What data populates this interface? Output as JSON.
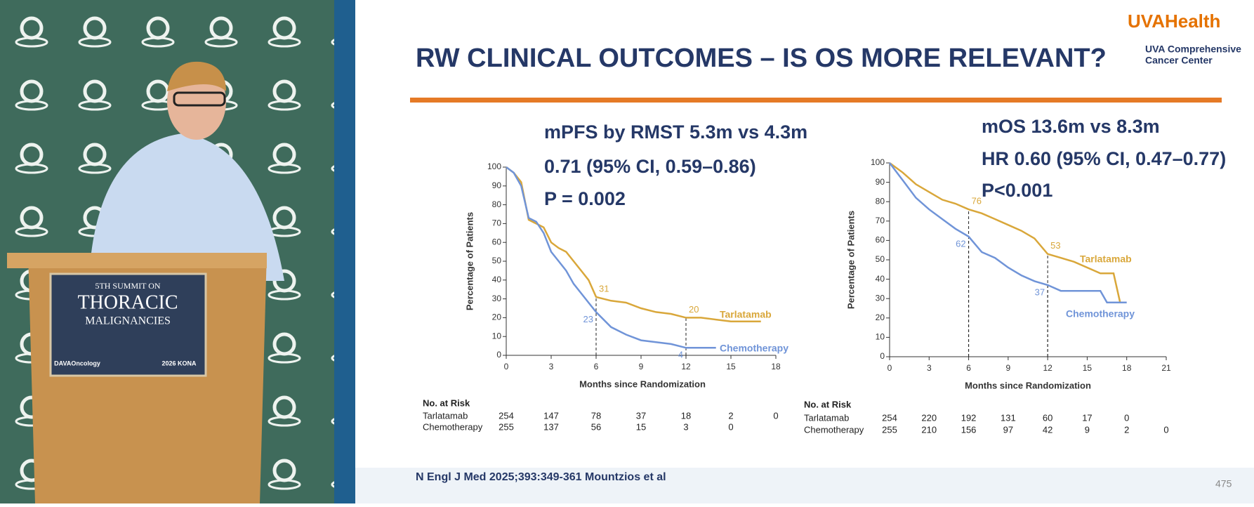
{
  "slide": {
    "title": "RW CLINICAL OUTCOMES – IS OS MORE RELEVANT?",
    "logo": "UVAHealth",
    "logo_sub": [
      "UVA Comprehensive",
      "Cancer Center"
    ],
    "citation": "N Engl J Med 2025;393:349-361 Mountzios et al",
    "page": "475"
  },
  "podium": {
    "lines": [
      "5TH SUMMIT ON",
      "THORACIC",
      "MALIGNANCIES"
    ],
    "left_logo": "DAVAOncology",
    "right_logo": "2026 KONA"
  },
  "chart_data": [
    {
      "type": "line",
      "stats": [
        "mPFS by RMST 5.3m vs 4.3m",
        "0.71 (95% CI, 0.59–0.86)",
        "P = 0.002"
      ],
      "x_label": "Months since Randomization",
      "y_label": "Percentage of Patients",
      "x": [
        0,
        0.5,
        1,
        1.5,
        2,
        2.5,
        3,
        3.5,
        4,
        4.5,
        5,
        5.5,
        6,
        7,
        8,
        9,
        10,
        11,
        12,
        13,
        14,
        15,
        16,
        17
      ],
      "series": [
        {
          "name": "Tarlatamab",
          "color": "#d9a73a",
          "values": [
            100,
            97,
            92,
            72,
            70,
            68,
            60,
            57,
            55,
            50,
            45,
            40,
            31,
            29,
            28,
            25,
            23,
            22,
            20,
            20,
            19,
            18,
            18,
            18
          ],
          "annotations": [
            {
              "x": 6,
              "y": 31
            },
            {
              "x": 12,
              "y": 20
            }
          ]
        },
        {
          "name": "Chemotherapy",
          "color": "#7094d8",
          "values": [
            100,
            97,
            90,
            73,
            71,
            65,
            55,
            50,
            45,
            38,
            33,
            28,
            23,
            15,
            11,
            8,
            7,
            6,
            4,
            4,
            4,
            null,
            null,
            null
          ],
          "annotations": [
            {
              "x": 6,
              "y": 23
            },
            {
              "x": 12,
              "y": 4
            }
          ]
        }
      ],
      "xlim": [
        0,
        18
      ],
      "xticks": [
        0,
        3,
        6,
        9,
        12,
        15,
        18
      ],
      "ylim": [
        0,
        100
      ],
      "yticks": [
        0,
        10,
        20,
        30,
        40,
        50,
        60,
        70,
        80,
        90,
        100
      ],
      "risk_table": {
        "title": "No. at Risk",
        "rows": [
          {
            "name": "Tarlatamab",
            "values": [
              254,
              147,
              78,
              37,
              18,
              2,
              0
            ]
          },
          {
            "name": "Chemotherapy",
            "values": [
              255,
              137,
              56,
              15,
              3,
              0
            ]
          }
        ]
      }
    },
    {
      "type": "line",
      "stats": [
        "mOS 13.6m vs 8.3m",
        "HR 0.60 (95% CI, 0.47–0.77)",
        "P<0.001"
      ],
      "x_label": "Months since Randomization",
      "y_label": "Percentage of Patients",
      "x": [
        0,
        1,
        2,
        3,
        4,
        5,
        6,
        7,
        8,
        9,
        10,
        11,
        12,
        13,
        14,
        15,
        16,
        16.5,
        17,
        17.5,
        18
      ],
      "series": [
        {
          "name": "Tarlatamab",
          "color": "#d9a73a",
          "values": [
            100,
            95,
            89,
            85,
            81,
            79,
            76,
            74,
            71,
            68,
            65,
            61,
            53,
            51,
            49,
            46,
            43,
            43,
            43,
            28,
            null
          ],
          "annotations": [
            {
              "x": 6,
              "y": 76
            },
            {
              "x": 12,
              "y": 53
            }
          ]
        },
        {
          "name": "Chemotherapy",
          "color": "#7094d8",
          "values": [
            100,
            91,
            82,
            76,
            71,
            66,
            62,
            54,
            51,
            46,
            42,
            39,
            37,
            34,
            34,
            34,
            34,
            28,
            28,
            28,
            28
          ],
          "annotations": [
            {
              "x": 6,
              "y": 62
            },
            {
              "x": 12,
              "y": 37
            }
          ]
        }
      ],
      "xlim": [
        0,
        21
      ],
      "xticks": [
        0,
        3,
        6,
        9,
        12,
        15,
        18,
        21
      ],
      "ylim": [
        0,
        100
      ],
      "yticks": [
        0,
        10,
        20,
        30,
        40,
        50,
        60,
        70,
        80,
        90,
        100
      ],
      "risk_table": {
        "title": "No. at Risk",
        "rows": [
          {
            "name": "Tarlatamab",
            "values": [
              254,
              220,
              192,
              131,
              60,
              17,
              0
            ]
          },
          {
            "name": "Chemotherapy",
            "values": [
              255,
              210,
              156,
              97,
              42,
              9,
              2,
              0
            ]
          }
        ]
      }
    }
  ]
}
